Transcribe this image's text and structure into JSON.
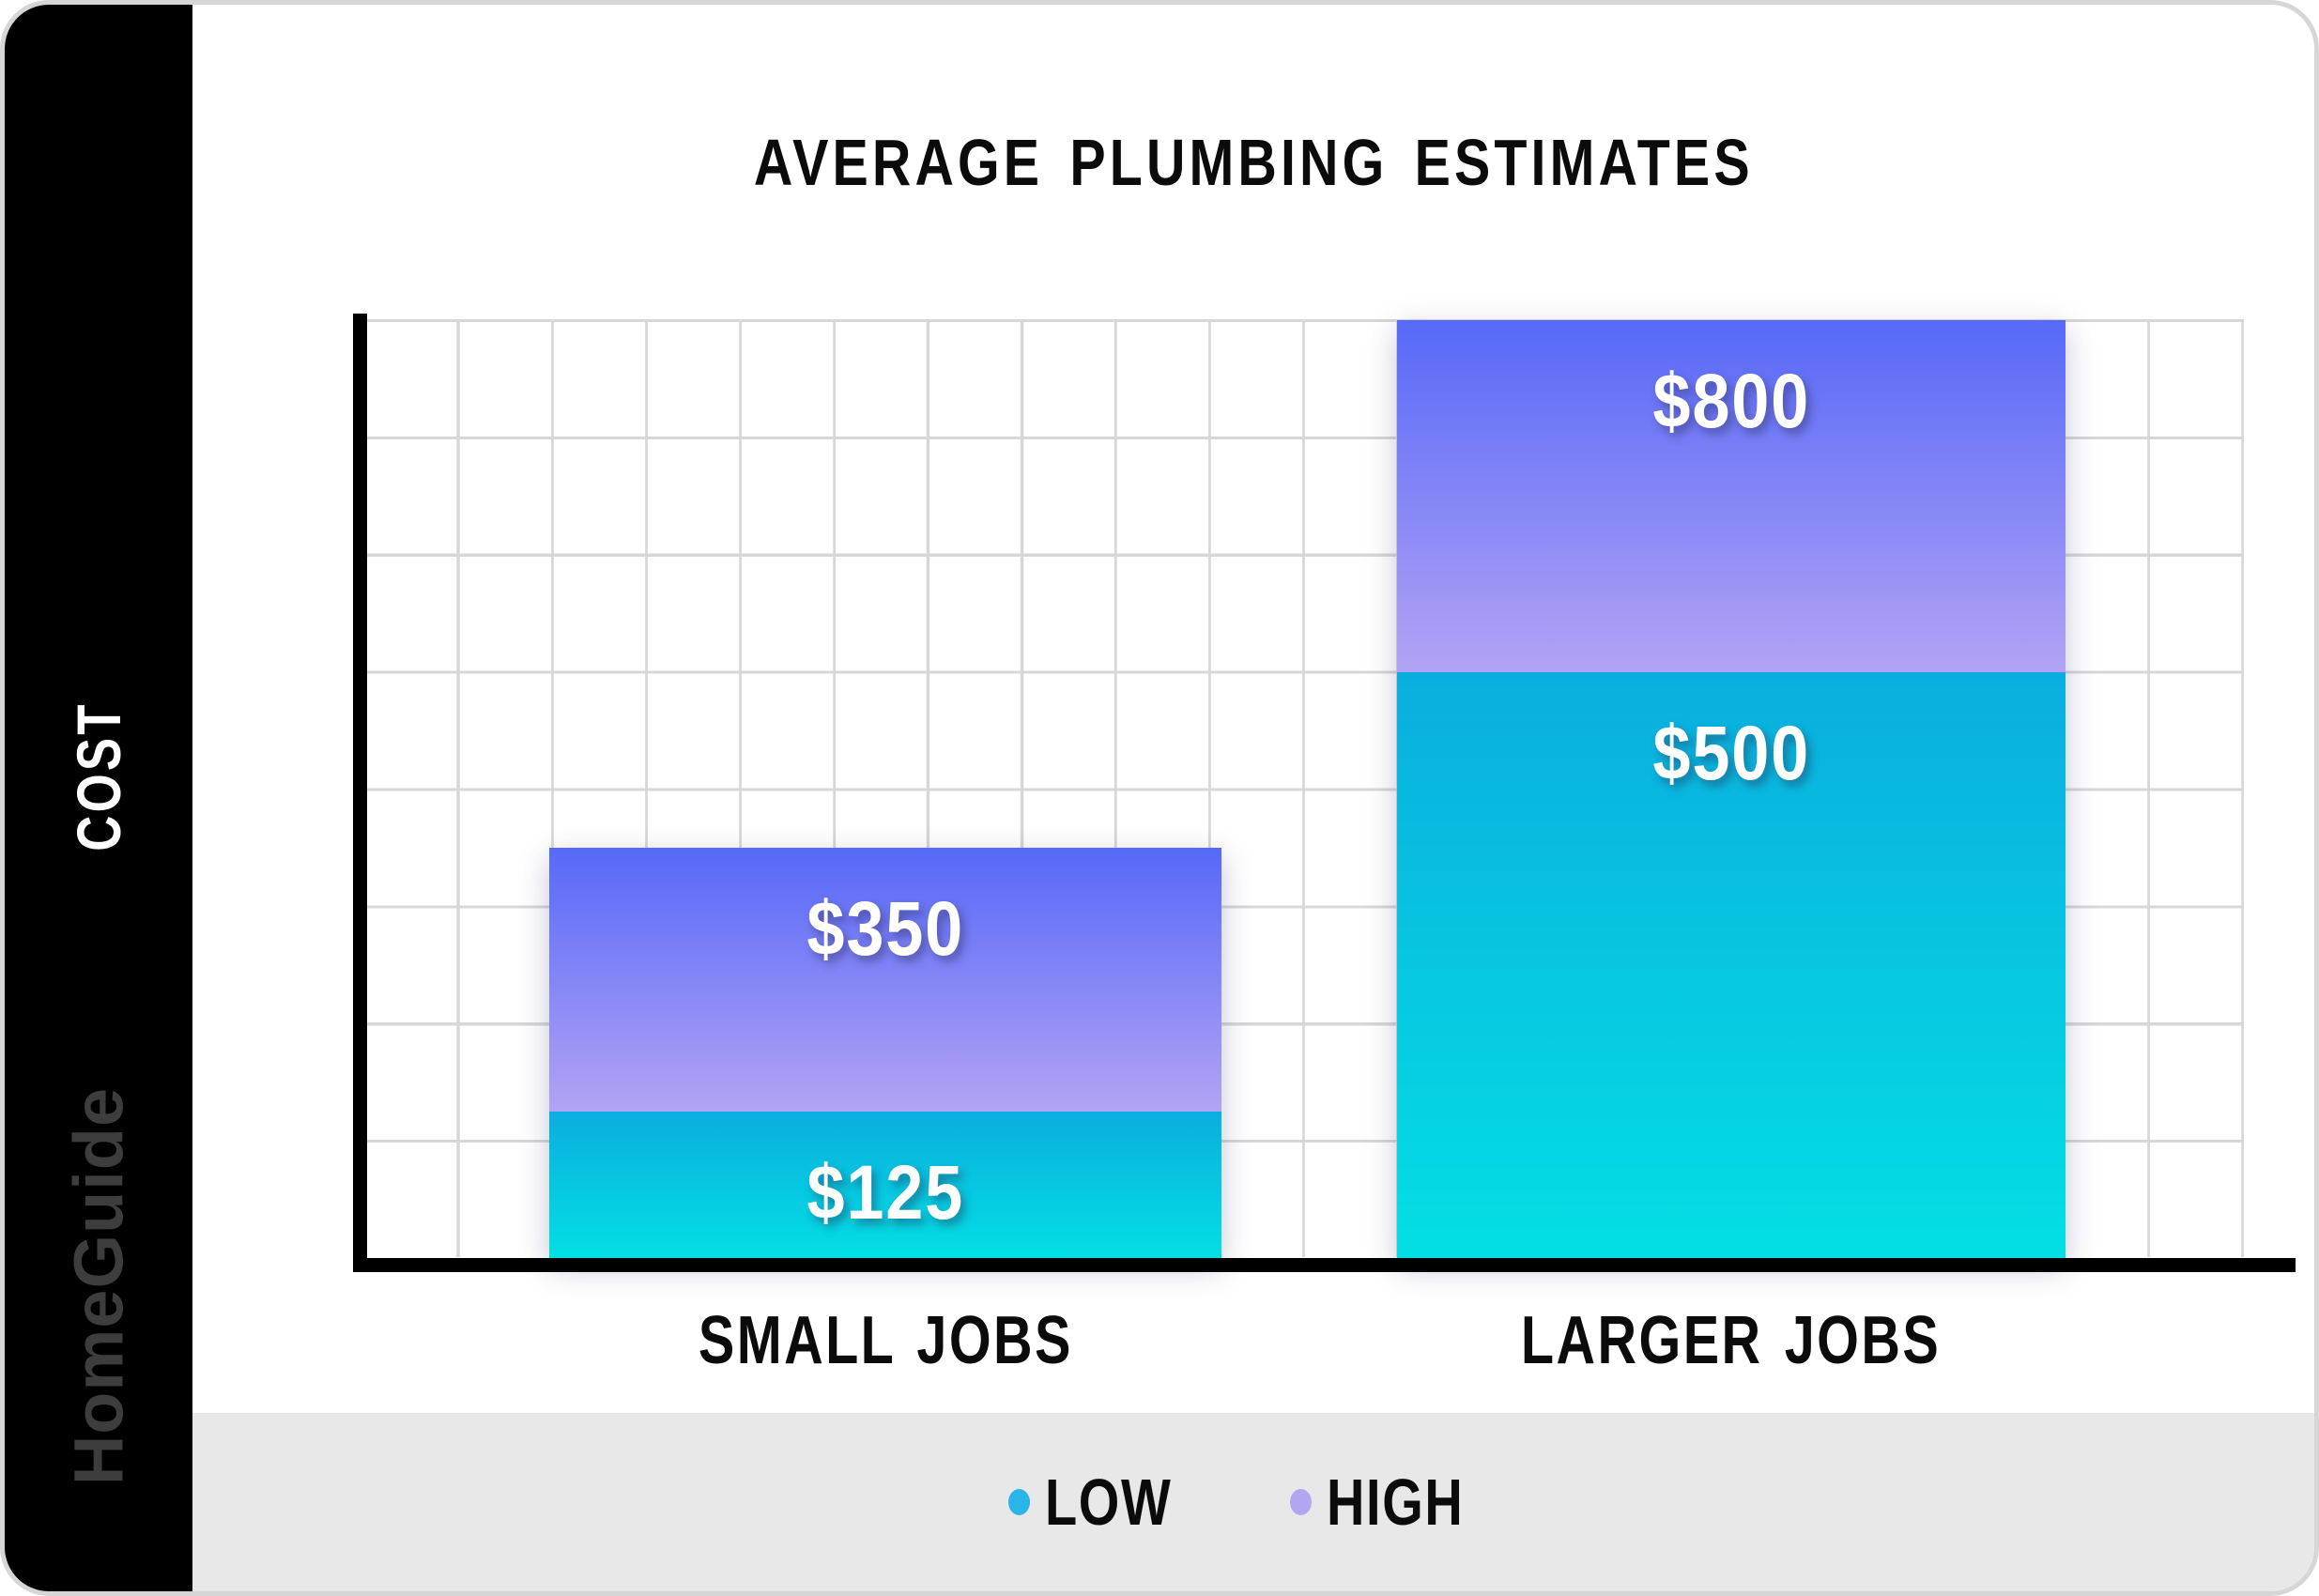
{
  "branding": {
    "watermark": "HomeGuide",
    "watermark_color": "#3d3d3d",
    "sidebar_color": "#000000"
  },
  "footer": {
    "background": "#e8e8e8"
  },
  "chart_data": {
    "type": "bar",
    "title": "AVERAGE PLUMBING ESTIMATES",
    "ylabel": "COST",
    "xlabel": "",
    "categories": [
      "SMALL JOBS",
      "LARGER JOBS"
    ],
    "series": [
      {
        "name": "LOW",
        "values": [
          125,
          500
        ],
        "color_top": "#0aaede",
        "color_bottom": "#03dfe4"
      },
      {
        "name": "HIGH",
        "values": [
          350,
          800
        ],
        "color_top": "#5669f8",
        "color_bottom": "#b2a3f4"
      }
    ],
    "bars": [
      {
        "category": "SMALL JOBS",
        "low": 125,
        "high": 350,
        "low_label": "$125",
        "high_label": "$350"
      },
      {
        "category": "LARGER JOBS",
        "low": 500,
        "high": 800,
        "low_label": "$500",
        "high_label": "$800"
      }
    ],
    "stacking": "total bar height = HIGH value; bottom teal segment = LOW value; purple segment spans LOW to HIGH",
    "ylim": [
      0,
      800
    ],
    "grid": true,
    "grid_color": "#d7d7d7",
    "axis_color": "#000000",
    "legend_position": "bottom",
    "legend": [
      {
        "label": "LOW",
        "dot_color": "#29b5e8"
      },
      {
        "label": "HIGH",
        "dot_color": "#b3a6f1"
      }
    ]
  }
}
